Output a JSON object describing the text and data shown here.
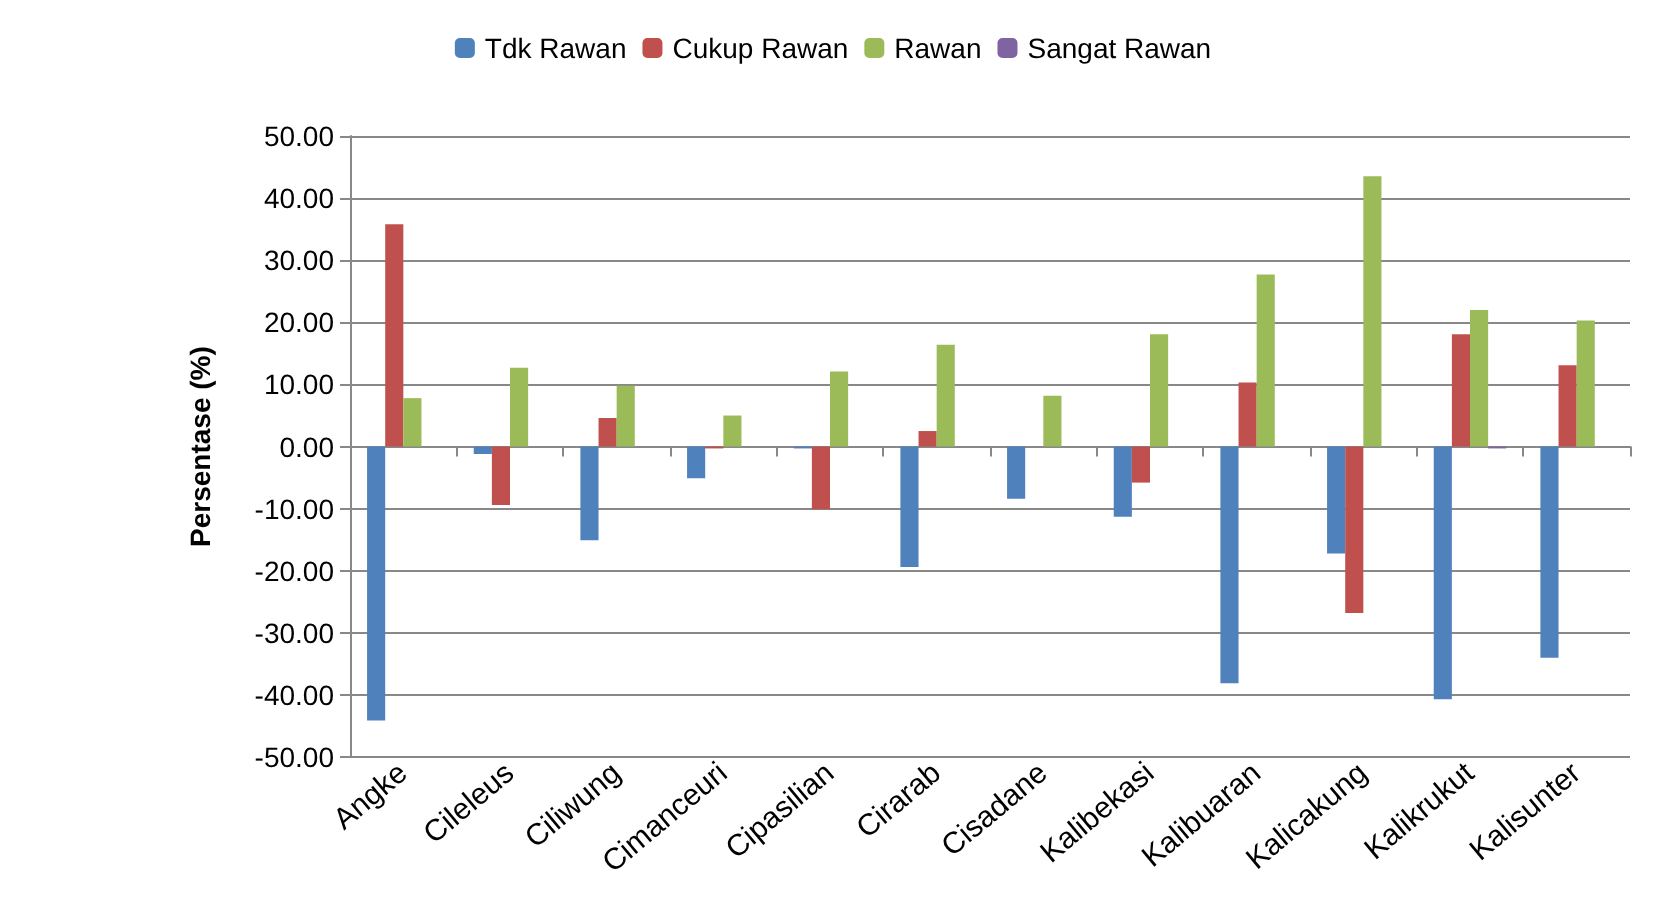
{
  "chart_data": {
    "type": "bar",
    "ylabel": "Persentase (%)",
    "categories": [
      "Angke",
      "Cileleus",
      "Ciliwung",
      "Cimanceuri",
      "Cipasilian",
      "Cirarab",
      "Cisadane",
      "Kalibekasi",
      "Kalibuaran",
      "Kalicakung",
      "Kalikrukut",
      "Kalisunter"
    ],
    "series": [
      {
        "name": "Tdk Rawan",
        "color": "#4f81bd",
        "values": [
          -44.1,
          -1.2,
          -15.1,
          -5.1,
          -0.3,
          -19.4,
          -8.4,
          -11.3,
          -38.1,
          -17.2,
          -40.7,
          -34.0
        ]
      },
      {
        "name": "Cukup Rawan",
        "color": "#c0504d",
        "values": [
          35.8,
          -9.4,
          4.6,
          -0.3,
          -10.1,
          2.5,
          0,
          -5.8,
          10.3,
          -26.8,
          18.1,
          13.1
        ]
      },
      {
        "name": "Rawan",
        "color": "#9bbb59",
        "values": [
          7.8,
          12.7,
          9.8,
          5.0,
          12.1,
          16.4,
          8.2,
          18.1,
          27.7,
          43.5,
          22.0,
          20.3
        ]
      },
      {
        "name": "Sangat Rawan",
        "color": "#8064a2",
        "values": [
          0,
          0,
          0,
          0,
          0,
          0,
          0,
          0,
          0,
          0,
          -0.3,
          0
        ]
      }
    ],
    "ylim": [
      -50,
      50
    ],
    "yticks": [
      {
        "value": -50,
        "label": "-50.00"
      },
      {
        "value": -40,
        "label": "-40.00"
      },
      {
        "value": -30,
        "label": "-30.00"
      },
      {
        "value": -20,
        "label": "-20.00"
      },
      {
        "value": -10,
        "label": "-10.00"
      },
      {
        "value": 0,
        "label": "0.00"
      },
      {
        "value": 10,
        "label": "10.00"
      },
      {
        "value": 20,
        "label": "20.00"
      },
      {
        "value": 30,
        "label": "30.00"
      },
      {
        "value": 40,
        "label": "40.00"
      },
      {
        "value": 50,
        "label": "50.00"
      }
    ],
    "grid": "y",
    "legend": "top"
  }
}
